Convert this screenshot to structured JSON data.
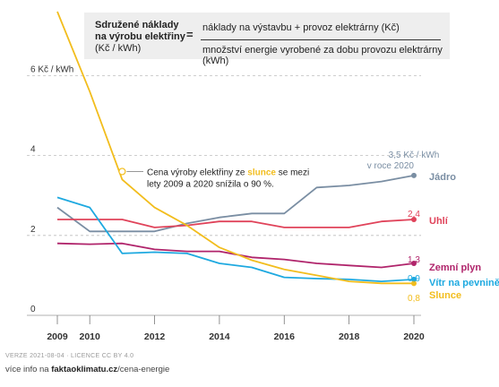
{
  "formula": {
    "lhs_line1": "Sdružené náklady",
    "lhs_line2": "na výrobu elektřiny",
    "lhs_unit": "(Kč / kWh)",
    "equals": "=",
    "numerator": "náklady na výstavbu + provoz elektrárny (Kč)",
    "denominator": "množství energie vyrobené za dobu provozu elektrárny (kWh)"
  },
  "footer": {
    "meta": "VERZE 2021-08-04 · LICENCE CC BY 4.0",
    "more_prefix": "více info na ",
    "more_site": "faktaoklimatu.cz",
    "more_path": "/cena-energie"
  },
  "chart_data": {
    "type": "line",
    "ylim": [
      0,
      7
    ],
    "yticks": [
      {
        "value": 0,
        "label": "0"
      },
      {
        "value": 2,
        "label": "2"
      },
      {
        "value": 4,
        "label": "4"
      },
      {
        "value": 6,
        "label": "6 Kč / kWh"
      }
    ],
    "xticks": [
      {
        "value": 2009,
        "label": "2009"
      },
      {
        "value": 2010,
        "label": "2010"
      },
      {
        "value": 2012,
        "label": "2012"
      },
      {
        "value": 2014,
        "label": "2014"
      },
      {
        "value": 2016,
        "label": "2016"
      },
      {
        "value": 2018,
        "label": "2018"
      },
      {
        "value": 2020,
        "label": "2020"
      }
    ],
    "grid": true,
    "series": [
      {
        "name": "Jádro",
        "color": "#7a8ea3",
        "x": [
          2009,
          2010,
          2011,
          2012,
          2013,
          2014,
          2015,
          2016,
          2017,
          2018,
          2019,
          2020
        ],
        "y": [
          2.7,
          2.1,
          2.1,
          2.1,
          2.3,
          2.45,
          2.55,
          2.55,
          3.2,
          3.25,
          3.35,
          3.5
        ],
        "end_value": "3,5 Kč / kWh",
        "end_note": "v roce 2020"
      },
      {
        "name": "Uhlí",
        "color": "#e0435a",
        "x": [
          2009,
          2010,
          2011,
          2012,
          2013,
          2014,
          2015,
          2016,
          2017,
          2018,
          2019,
          2020
        ],
        "y": [
          2.4,
          2.4,
          2.4,
          2.2,
          2.25,
          2.35,
          2.35,
          2.2,
          2.2,
          2.2,
          2.35,
          2.4
        ],
        "end_value": "2,4"
      },
      {
        "name": "Zemní plyn",
        "color": "#b0246b",
        "x": [
          2009,
          2010,
          2011,
          2012,
          2013,
          2014,
          2015,
          2016,
          2017,
          2018,
          2019,
          2020
        ],
        "y": [
          1.8,
          1.78,
          1.8,
          1.65,
          1.6,
          1.6,
          1.45,
          1.4,
          1.3,
          1.25,
          1.2,
          1.3
        ],
        "end_value": "1,3"
      },
      {
        "name": "Vítr na pevnině",
        "color": "#1ea9e0",
        "x": [
          2009,
          2010,
          2011,
          2012,
          2013,
          2014,
          2015,
          2016,
          2017,
          2018,
          2019,
          2020
        ],
        "y": [
          2.95,
          2.7,
          1.55,
          1.58,
          1.55,
          1.3,
          1.2,
          0.95,
          0.92,
          0.9,
          0.85,
          0.9
        ],
        "end_value": "0,9"
      },
      {
        "name": "Slunce",
        "color": "#f2bd1d",
        "x": [
          2009,
          2010,
          2011,
          2012,
          2013,
          2014,
          2015,
          2016,
          2017,
          2018,
          2019,
          2020
        ],
        "y": [
          7.6,
          5.6,
          3.4,
          2.7,
          2.25,
          1.7,
          1.38,
          1.15,
          1.0,
          0.85,
          0.8,
          0.8
        ],
        "end_value": "0,8"
      }
    ],
    "annotation": {
      "x": 2011,
      "y": 3.6,
      "text_before": "Cena výroby elektřiny ze ",
      "text_highlight": "slunce",
      "text_after": " se mezi",
      "text_line2": "lety 2009 a 2020 snížila o 90 %."
    }
  }
}
